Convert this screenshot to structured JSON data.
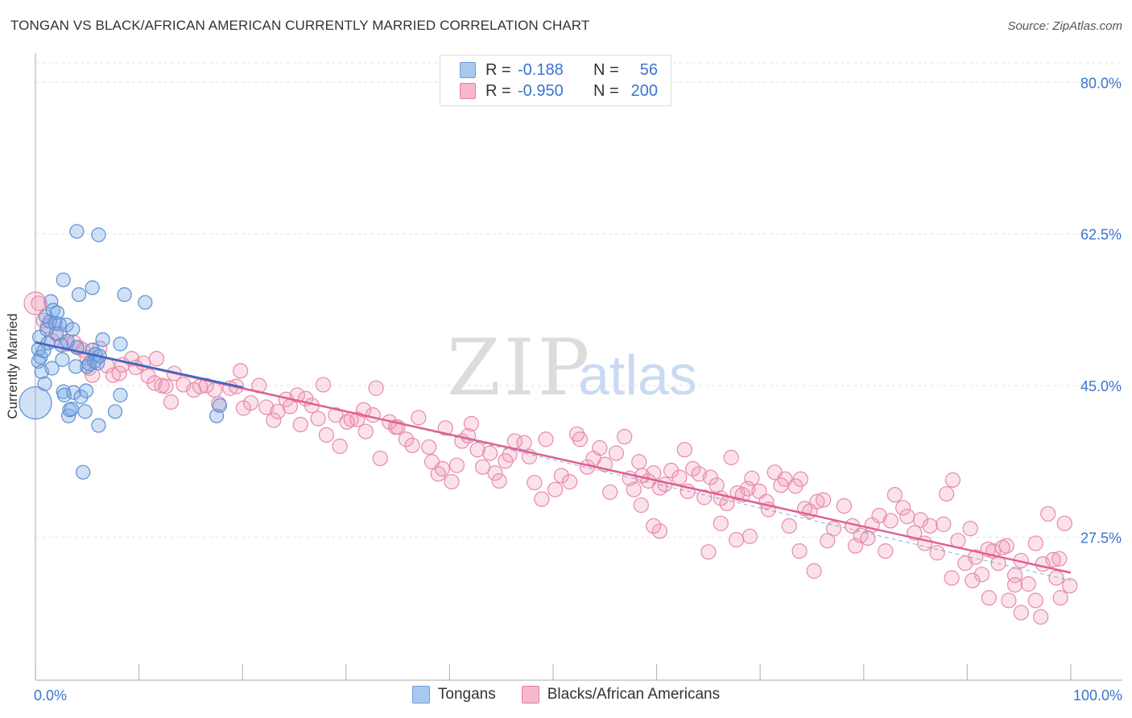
{
  "header": {
    "title": "TONGAN VS BLACK/AFRICAN AMERICAN CURRENTLY MARRIED CORRELATION CHART",
    "source": "Source: ZipAtlas.com"
  },
  "watermark": {
    "zip": "ZIP",
    "atlas": "atlas"
  },
  "legend": {
    "rows": [
      {
        "r_label": "R =",
        "r_value": "-0.188",
        "n_label": "N =",
        "n_value": "56",
        "color": "#a9c8f0",
        "border": "#6a9fd8"
      },
      {
        "r_label": "R =",
        "r_value": "-0.950",
        "n_label": "N =",
        "n_value": "200",
        "color": "#f6b8cb",
        "border": "#e27fa0"
      }
    ]
  },
  "bottom_legend": {
    "items": [
      {
        "label": "Tongans",
        "color": "#a9c8f0",
        "border": "#6a9fd8"
      },
      {
        "label": "Blacks/African Americans",
        "color": "#f6b8cb",
        "border": "#e27fa0"
      }
    ]
  },
  "colors": {
    "blue_fill": "rgba(120,165,225,0.35)",
    "blue_stroke": "#5b8fd6",
    "blue_line": "#2f6bc9",
    "pink_fill": "rgba(240,150,180,0.28)",
    "pink_stroke": "#e68aa9",
    "pink_line": "#e0608f",
    "grid": "#e2e2e2",
    "tick_text": "#3a74d0"
  },
  "chart_data": {
    "type": "scatter",
    "title": "TONGAN VS BLACK/AFRICAN AMERICAN CURRENTLY MARRIED CORRELATION CHART",
    "xlabel": "",
    "ylabel": "Currently Married",
    "xlim": [
      0,
      100
    ],
    "ylim": [
      11,
      83
    ],
    "x_tick_labels": [
      "0.0%",
      "100.0%"
    ],
    "y_ticks": [
      27.5,
      45.0,
      62.5,
      80.0
    ],
    "y_tick_labels": [
      "27.5%",
      "45.0%",
      "62.5%",
      "80.0%"
    ],
    "grid": true,
    "legend_position": "top-center",
    "series": [
      {
        "name": "Tongans",
        "r": -0.188,
        "n": 56,
        "trend": {
          "x": [
            0,
            20
          ],
          "y": [
            50.0,
            44.8
          ]
        },
        "points": [
          [
            0.3,
            49.2
          ],
          [
            0.5,
            48.3
          ],
          [
            0.4,
            50.6
          ],
          [
            0.3,
            47.8
          ],
          [
            0.6,
            46.6
          ],
          [
            0.8,
            49.0
          ],
          [
            1.0,
            53.0
          ],
          [
            1.1,
            51.5
          ],
          [
            1.2,
            49.9
          ],
          [
            1.4,
            52.4
          ],
          [
            1.5,
            54.7
          ],
          [
            1.7,
            53.7
          ],
          [
            1.9,
            52.2
          ],
          [
            2.1,
            53.4
          ],
          [
            2.3,
            52.1
          ],
          [
            2.5,
            49.7
          ],
          [
            2.6,
            48.0
          ],
          [
            2.7,
            44.3
          ],
          [
            2.8,
            43.9
          ],
          [
            3.0,
            52.0
          ],
          [
            3.1,
            50.1
          ],
          [
            3.2,
            41.5
          ],
          [
            3.3,
            42.2
          ],
          [
            3.5,
            42.3
          ],
          [
            3.7,
            44.2
          ],
          [
            3.9,
            47.2
          ],
          [
            4.0,
            49.4
          ],
          [
            4.2,
            55.5
          ],
          [
            4.4,
            43.7
          ],
          [
            4.6,
            35.0
          ],
          [
            4.8,
            42.0
          ],
          [
            4.9,
            44.4
          ],
          [
            5.0,
            47.2
          ],
          [
            5.2,
            47.5
          ],
          [
            5.5,
            49.1
          ],
          [
            5.7,
            47.8
          ],
          [
            5.8,
            48.6
          ],
          [
            6.0,
            47.6
          ],
          [
            6.2,
            48.4
          ],
          [
            6.5,
            50.3
          ],
          [
            4.0,
            62.8
          ],
          [
            6.1,
            62.4
          ],
          [
            2.7,
            57.2
          ],
          [
            5.5,
            56.3
          ],
          [
            8.6,
            55.5
          ],
          [
            10.6,
            54.6
          ],
          [
            8.2,
            43.9
          ],
          [
            7.7,
            42.0
          ],
          [
            6.1,
            40.4
          ],
          [
            8.2,
            49.8
          ],
          [
            17.5,
            41.5
          ],
          [
            17.8,
            42.7
          ],
          [
            2.0,
            51.0
          ],
          [
            1.6,
            47.0
          ],
          [
            3.6,
            51.5
          ],
          [
            0.9,
            45.2
          ]
        ],
        "big_point": [
          0.0,
          43.0
        ]
      },
      {
        "name": "Blacks/African Americans",
        "r": -0.95,
        "n": 200,
        "trend": {
          "x": [
            0,
            100
          ],
          "y": [
            50.0,
            23.4
          ]
        },
        "points": [
          [
            0.3,
            54.5
          ],
          [
            0.8,
            52.5
          ],
          [
            1.2,
            51.9
          ],
          [
            1.6,
            50.2
          ],
          [
            2.3,
            51.0
          ],
          [
            3.0,
            49.8
          ],
          [
            3.7,
            50.0
          ],
          [
            4.2,
            49.4
          ],
          [
            4.6,
            49.1
          ],
          [
            5.0,
            48.2
          ],
          [
            5.2,
            47.0
          ],
          [
            5.5,
            46.2
          ],
          [
            6.2,
            49.3
          ],
          [
            6.9,
            47.3
          ],
          [
            7.5,
            46.2
          ],
          [
            8.1,
            46.4
          ],
          [
            8.4,
            47.4
          ],
          [
            9.3,
            48.1
          ],
          [
            9.7,
            47.1
          ],
          [
            10.4,
            47.6
          ],
          [
            10.9,
            46.1
          ],
          [
            11.5,
            45.3
          ],
          [
            11.7,
            48.1
          ],
          [
            12.2,
            45.0
          ],
          [
            12.6,
            44.9
          ],
          [
            13.1,
            43.1
          ],
          [
            13.4,
            46.4
          ],
          [
            14.3,
            45.1
          ],
          [
            15.3,
            44.5
          ],
          [
            15.9,
            44.9
          ],
          [
            16.5,
            45.0
          ],
          [
            17.3,
            44.5
          ],
          [
            17.7,
            42.9
          ],
          [
            18.8,
            44.7
          ],
          [
            19.4,
            44.9
          ],
          [
            19.8,
            46.7
          ],
          [
            20.1,
            42.4
          ],
          [
            20.8,
            43.0
          ],
          [
            21.6,
            45.0
          ],
          [
            22.3,
            42.5
          ],
          [
            23.0,
            41.0
          ],
          [
            23.4,
            42.0
          ],
          [
            24.2,
            43.4
          ],
          [
            24.6,
            42.6
          ],
          [
            25.3,
            43.9
          ],
          [
            25.6,
            40.5
          ],
          [
            26.1,
            43.5
          ],
          [
            26.7,
            42.7
          ],
          [
            27.3,
            41.2
          ],
          [
            27.8,
            45.1
          ],
          [
            28.1,
            39.3
          ],
          [
            29.0,
            41.6
          ],
          [
            29.4,
            38.0
          ],
          [
            30.1,
            40.8
          ],
          [
            30.5,
            41.1
          ],
          [
            31.1,
            41.1
          ],
          [
            31.7,
            42.2
          ],
          [
            31.9,
            39.7
          ],
          [
            32.6,
            41.6
          ],
          [
            32.9,
            44.7
          ],
          [
            33.3,
            36.6
          ],
          [
            34.2,
            40.8
          ],
          [
            34.8,
            40.2
          ],
          [
            35.0,
            40.2
          ],
          [
            35.8,
            38.8
          ],
          [
            36.4,
            38.1
          ],
          [
            37.0,
            41.3
          ],
          [
            38.0,
            37.9
          ],
          [
            38.3,
            36.2
          ],
          [
            38.9,
            34.8
          ],
          [
            39.3,
            35.4
          ],
          [
            39.6,
            40.1
          ],
          [
            40.2,
            33.9
          ],
          [
            40.7,
            35.8
          ],
          [
            41.2,
            38.6
          ],
          [
            41.8,
            39.2
          ],
          [
            42.1,
            40.6
          ],
          [
            42.7,
            37.6
          ],
          [
            43.2,
            35.6
          ],
          [
            43.9,
            37.2
          ],
          [
            44.4,
            34.9
          ],
          [
            44.8,
            34.0
          ],
          [
            45.4,
            36.3
          ],
          [
            45.8,
            37.0
          ],
          [
            46.3,
            38.6
          ],
          [
            47.2,
            38.4
          ],
          [
            47.7,
            36.8
          ],
          [
            48.2,
            33.8
          ],
          [
            48.9,
            31.9
          ],
          [
            49.3,
            38.8
          ],
          [
            50.2,
            33.0
          ],
          [
            50.8,
            34.6
          ],
          [
            51.6,
            33.9
          ],
          [
            52.3,
            39.4
          ],
          [
            52.6,
            38.8
          ],
          [
            53.3,
            35.6
          ],
          [
            53.9,
            36.6
          ],
          [
            54.5,
            37.8
          ],
          [
            55.0,
            35.9
          ],
          [
            55.5,
            32.7
          ],
          [
            56.1,
            37.2
          ],
          [
            56.9,
            39.1
          ],
          [
            57.4,
            34.3
          ],
          [
            57.8,
            33.0
          ],
          [
            58.3,
            36.2
          ],
          [
            58.6,
            34.6
          ],
          [
            59.2,
            34.0
          ],
          [
            59.7,
            34.9
          ],
          [
            60.3,
            33.2
          ],
          [
            60.8,
            33.6
          ],
          [
            61.4,
            35.2
          ],
          [
            62.2,
            34.4
          ],
          [
            62.7,
            37.6
          ],
          [
            63.0,
            32.8
          ],
          [
            63.5,
            35.4
          ],
          [
            64.1,
            34.8
          ],
          [
            64.6,
            32.1
          ],
          [
            65.2,
            34.4
          ],
          [
            65.8,
            33.5
          ],
          [
            66.2,
            32.0
          ],
          [
            66.8,
            31.4
          ],
          [
            67.2,
            36.7
          ],
          [
            67.8,
            32.6
          ],
          [
            68.3,
            32.4
          ],
          [
            68.8,
            33.1
          ],
          [
            69.2,
            34.3
          ],
          [
            69.9,
            32.8
          ],
          [
            70.6,
            31.6
          ],
          [
            71.4,
            35.0
          ],
          [
            72.0,
            33.5
          ],
          [
            72.4,
            34.2
          ],
          [
            72.8,
            28.8
          ],
          [
            73.4,
            33.4
          ],
          [
            73.9,
            34.2
          ],
          [
            74.3,
            30.8
          ],
          [
            74.8,
            30.5
          ],
          [
            75.5,
            31.6
          ],
          [
            76.1,
            31.8
          ],
          [
            76.5,
            27.1
          ],
          [
            77.1,
            28.5
          ],
          [
            78.1,
            31.1
          ],
          [
            78.9,
            28.8
          ],
          [
            79.2,
            26.5
          ],
          [
            79.7,
            27.7
          ],
          [
            80.4,
            27.4
          ],
          [
            80.8,
            28.9
          ],
          [
            81.5,
            30.0
          ],
          [
            82.1,
            25.9
          ],
          [
            82.6,
            29.4
          ],
          [
            83.0,
            32.4
          ],
          [
            83.8,
            30.9
          ],
          [
            84.2,
            29.9
          ],
          [
            84.9,
            28.0
          ],
          [
            85.5,
            29.5
          ],
          [
            85.9,
            26.8
          ],
          [
            86.4,
            28.8
          ],
          [
            87.1,
            25.7
          ],
          [
            87.7,
            29.0
          ],
          [
            88.0,
            32.5
          ],
          [
            88.6,
            34.1
          ],
          [
            89.1,
            27.1
          ],
          [
            89.8,
            24.5
          ],
          [
            90.3,
            28.5
          ],
          [
            90.8,
            25.2
          ],
          [
            91.4,
            23.2
          ],
          [
            92.0,
            26.1
          ],
          [
            92.5,
            25.9
          ],
          [
            93.0,
            24.5
          ],
          [
            93.4,
            26.3
          ],
          [
            94.0,
            20.2
          ],
          [
            94.6,
            23.1
          ],
          [
            95.2,
            24.8
          ],
          [
            95.9,
            22.1
          ],
          [
            96.6,
            26.8
          ],
          [
            97.3,
            24.4
          ],
          [
            97.8,
            30.2
          ],
          [
            98.3,
            24.9
          ],
          [
            98.6,
            22.8
          ],
          [
            98.9,
            25.0
          ],
          [
            99.4,
            29.1
          ],
          [
            99.9,
            21.9
          ],
          [
            88.5,
            22.8
          ],
          [
            90.5,
            22.5
          ],
          [
            92.1,
            20.5
          ],
          [
            93.8,
            26.5
          ],
          [
            94.6,
            22.0
          ],
          [
            95.2,
            18.8
          ],
          [
            96.6,
            20.2
          ],
          [
            97.1,
            18.3
          ],
          [
            99.0,
            20.5
          ],
          [
            75.2,
            23.6
          ],
          [
            73.8,
            25.9
          ],
          [
            70.8,
            30.7
          ],
          [
            69.0,
            27.6
          ],
          [
            67.7,
            27.2
          ],
          [
            66.2,
            29.1
          ],
          [
            65.0,
            25.8
          ],
          [
            60.3,
            28.2
          ],
          [
            59.7,
            28.8
          ],
          [
            58.5,
            31.2
          ]
        ]
      }
    ]
  }
}
